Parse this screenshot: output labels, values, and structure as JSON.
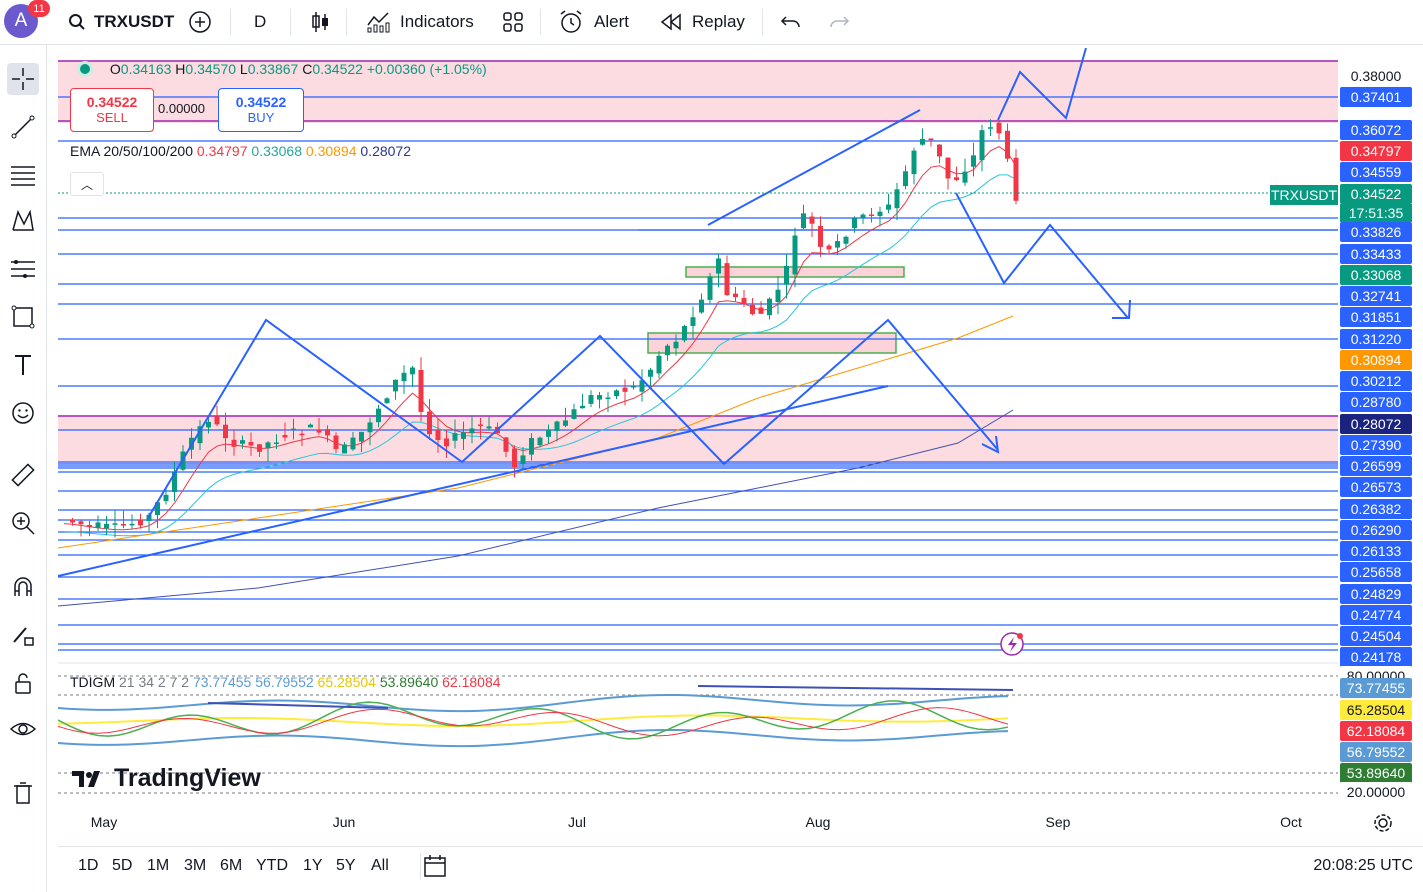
{
  "topbar": {
    "avatar_letter": "A",
    "notification_count": "11",
    "symbol": "TRXUSDT",
    "interval": "D",
    "indicators_label": "Indicators",
    "alert_label": "Alert",
    "replay_label": "Replay"
  },
  "legend": {
    "ohlc": {
      "o_label": "O",
      "o": "0.34163",
      "h_label": "H",
      "h": "0.34570",
      "l_label": "L",
      "l": "0.33867",
      "c_label": "C",
      "c": "0.34522",
      "change": "+0.00360 (+1.05%)"
    },
    "sell_price": "0.34522",
    "sell_label": "SELL",
    "spread": "0.00000",
    "buy_price": "0.34522",
    "buy_label": "BUY",
    "ema_title": "EMA 20/50/100/200",
    "ema_values": [
      "0.34797",
      "0.33068",
      "0.30894",
      "0.28072"
    ],
    "tdi_title": "TDIGM",
    "tdi_params": "21 34 2 7 2",
    "tdi_values": [
      "73.77455",
      "56.79552",
      "65.28504",
      "53.89640",
      "62.18084"
    ]
  },
  "price_axis": {
    "labels": [
      {
        "text": "0.38000",
        "style": "plain"
      },
      {
        "text": "0.37401",
        "style": "blue"
      },
      {
        "text": "0.36072",
        "style": "blue"
      },
      {
        "text": "0.34797",
        "style": "red"
      },
      {
        "text": "0.34559",
        "style": "blue"
      },
      {
        "text": "0.34522",
        "style": "green"
      },
      {
        "text": "0.33826",
        "style": "blue"
      },
      {
        "text": "0.33433",
        "style": "blue"
      },
      {
        "text": "0.33068",
        "style": "teal"
      },
      {
        "text": "0.32741",
        "style": "blue"
      },
      {
        "text": "0.31851",
        "style": "blue"
      },
      {
        "text": "0.31220",
        "style": "blue"
      },
      {
        "text": "0.30894",
        "style": "orange"
      },
      {
        "text": "0.30212",
        "style": "blue"
      },
      {
        "text": "0.28780",
        "style": "blue"
      },
      {
        "text": "0.28072",
        "style": "navy"
      },
      {
        "text": "0.27390",
        "style": "blue"
      },
      {
        "text": "0.26599",
        "style": "blue"
      },
      {
        "text": "0.26573",
        "style": "blue"
      },
      {
        "text": "0.26382",
        "style": "blue"
      },
      {
        "text": "0.26290",
        "style": "blue"
      },
      {
        "text": "0.26133",
        "style": "blue"
      },
      {
        "text": "0.25658",
        "style": "blue"
      },
      {
        "text": "0.24829",
        "style": "blue"
      },
      {
        "text": "0.24774",
        "style": "blue"
      },
      {
        "text": "0.24504",
        "style": "blue"
      },
      {
        "text": "0.24178",
        "style": "blue"
      }
    ],
    "symbol_tag": "TRXUSDT",
    "countdown": "17:51:35"
  },
  "tdi_axis": {
    "labels": [
      {
        "text": "80.00000",
        "style": "plain"
      },
      {
        "text": "73.77455",
        "style": "tdiblue"
      },
      {
        "text": "65.28504",
        "style": "yellow"
      },
      {
        "text": "62.18084",
        "style": "red"
      },
      {
        "text": "56.79552",
        "style": "tdiblue"
      },
      {
        "text": "53.89640",
        "style": "darkgreen"
      },
      {
        "text": "20.00000",
        "style": "plain"
      }
    ]
  },
  "time_axis": [
    "May",
    "Jun",
    "Jul",
    "Aug",
    "Sep",
    "Oct"
  ],
  "bottombar": {
    "ranges": [
      "1D",
      "5D",
      "1M",
      "3M",
      "6M",
      "YTD",
      "1Y",
      "5Y",
      "All"
    ],
    "clock": "20:08:25 UTC"
  },
  "brand": "TradingView",
  "colors": {
    "up": "#089981",
    "down": "#f23645",
    "level": "#2962ff",
    "zone": "#fbd3d8",
    "ema20": "#f23645",
    "ema50": "#26c6da",
    "ema100": "#ff9800",
    "ema200": "#3f51b5"
  }
}
